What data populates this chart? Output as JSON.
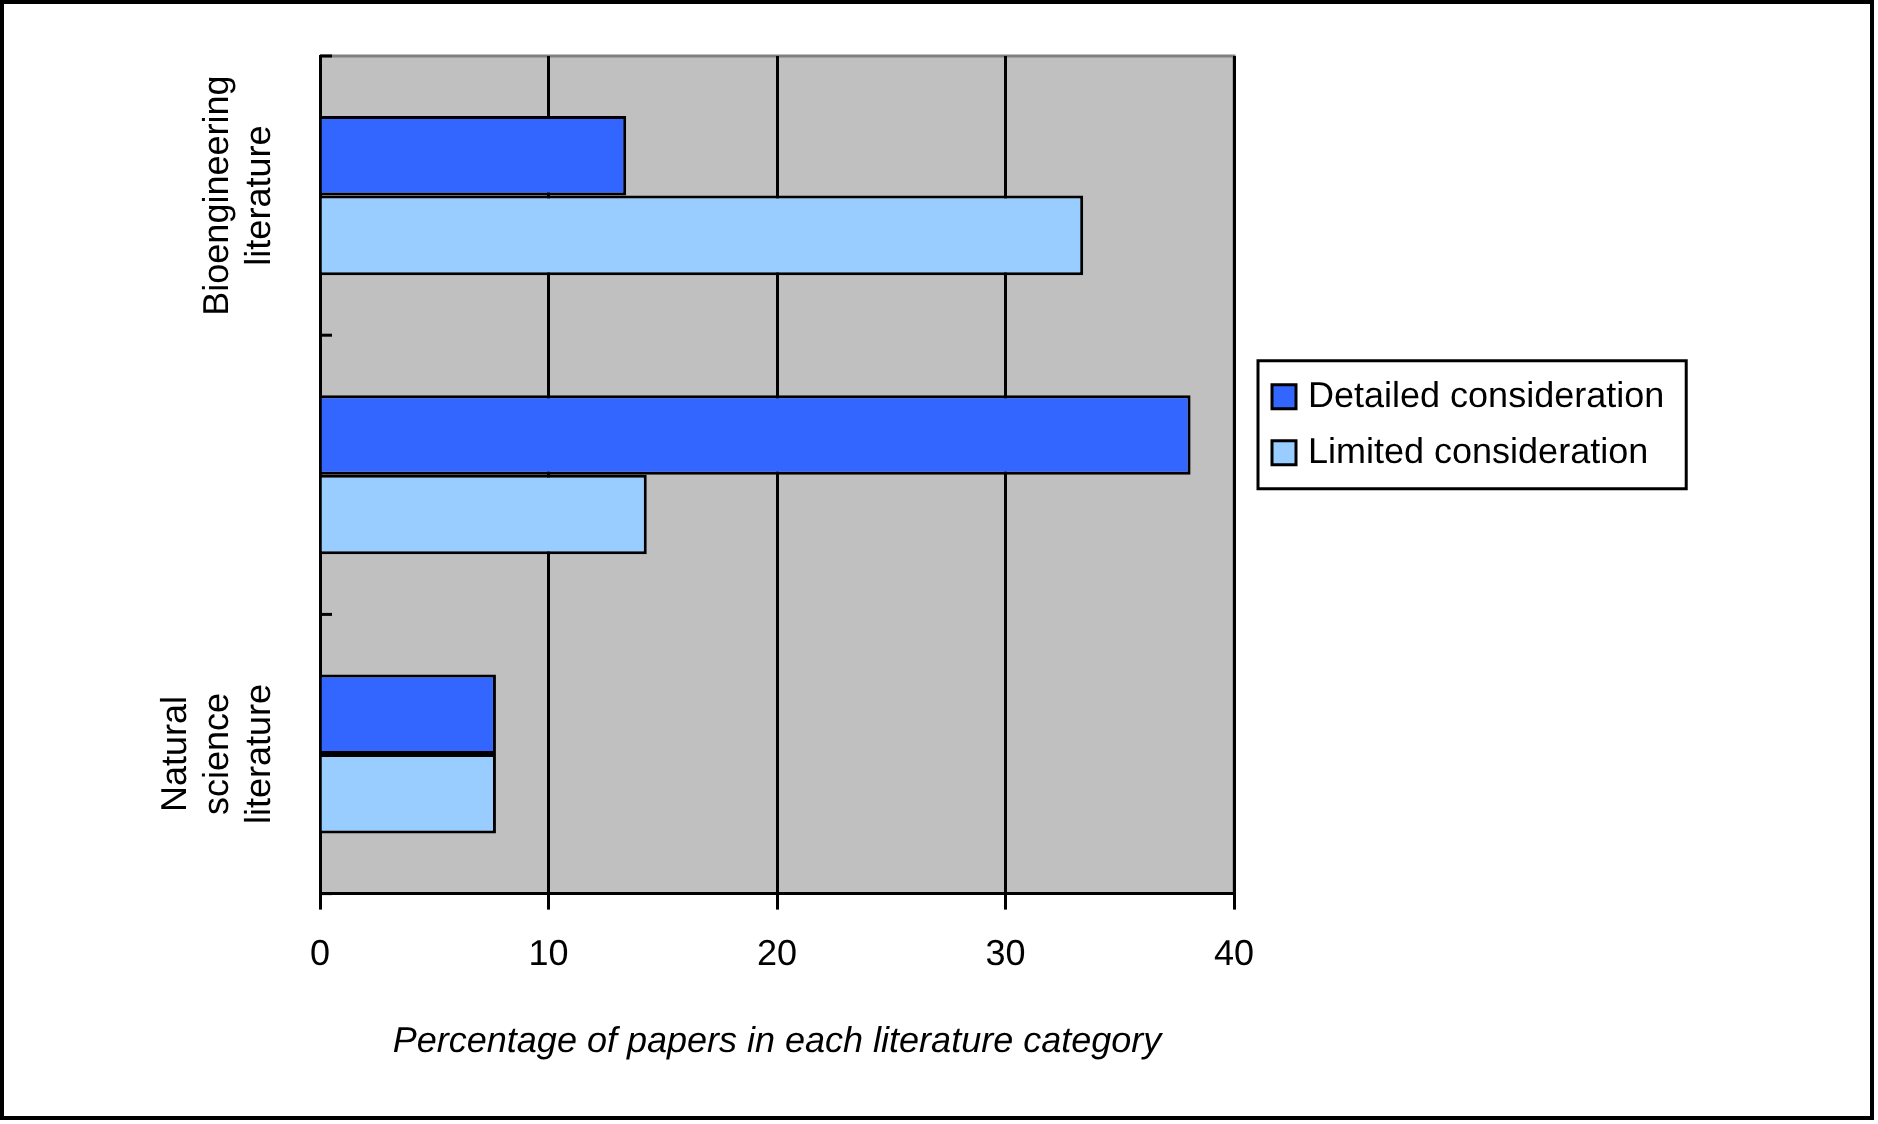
{
  "chart_data": {
    "type": "bar",
    "orientation": "horizontal",
    "xlabel": "Percentage of papers in each literature category",
    "categories": [
      "Bioengineering literature",
      null,
      "Natural science literature"
    ],
    "series": [
      {
        "name": "Detailed consideration",
        "color": "#3366ff",
        "values": [
          13.4,
          38.1,
          7.7
        ]
      },
      {
        "name": "Limited consideration",
        "color": "#99ccff",
        "values": [
          33.4,
          14.3,
          7.7
        ]
      }
    ],
    "xlim": [
      0,
      40
    ],
    "xticks": [
      0,
      10,
      20,
      30,
      40
    ],
    "grid": "x",
    "legend": "right"
  }
}
